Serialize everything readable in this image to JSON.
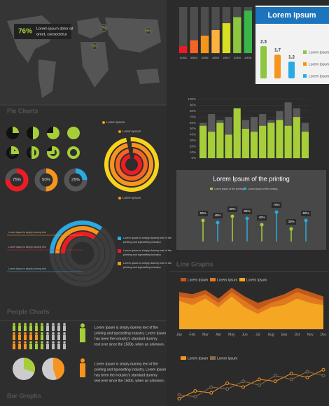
{
  "map": {
    "value_label": "76%",
    "caption": [
      "Lorem ipsum dolor sit",
      "amet, consectetur"
    ],
    "pins": [
      "2%",
      "6%",
      "6%"
    ]
  },
  "sections": {
    "pie": "Pie Charts",
    "line": "Line Graphs",
    "people": "People Charts",
    "bar": "Bar Graphs"
  },
  "radial_labels": [
    "Lorem Ipsum",
    "Lorem Ipsum",
    "Lorem Ipsum"
  ],
  "semi_labels": [
    "Lorem Ipsum is simply dummy text",
    "Lorem Ipsum is simply dummy text",
    "Lorem Ipsum is simply dummy text"
  ],
  "notes": [
    [
      "Lorem Ipsum is simply dummy text of the",
      "printing and typesetting industry."
    ],
    [
      "Lorem Ipsum is simply dummy text of the",
      "printing and typesetting industry."
    ],
    [
      "Lorem Ipsum is simply dummy text of the",
      "printing and typesetting industry."
    ]
  ],
  "people_text": [
    [
      "Lorem Ipsum is simply dummy text of the",
      "printing and typesetting industry. Lorem Ipsum",
      "has been the industry's standard dummy",
      "text ever since the 1500s, when an unknown."
    ],
    [
      "Lorem Ipsum is simply dummy text of the",
      "printing and typesetting industry. Lorem Ipsum",
      "has been the industry's standard dummy",
      "text ever since the 1500s, when an unknown."
    ]
  ],
  "chart_data": [
    {
      "type": "bar",
      "categories": [
        "2003",
        "2004",
        "2005",
        "2006",
        "2007",
        "2008",
        "2009"
      ],
      "values": [
        15,
        28,
        38,
        50,
        65,
        78,
        92
      ],
      "ylim": [
        0,
        100
      ],
      "colors": [
        "#ed1c24",
        "#f26522",
        "#f7941d",
        "#fbb040",
        "#d7df23",
        "#8dc63f",
        "#39b54a"
      ],
      "track_color": "#4d4d4d"
    },
    {
      "type": "bar",
      "title": "Lorem Ipsum",
      "values": [
        2.3,
        1.7,
        1.2
      ],
      "ylim": [
        0,
        3
      ],
      "colors": [
        "#8dc63f",
        "#f7941d",
        "#29abe2"
      ],
      "legend": [
        "Lorem Ipsum",
        "Lorem Ipsum",
        "Lorem Ipsum"
      ]
    },
    {
      "type": "bar",
      "values": [
        55,
        45,
        60,
        40,
        85,
        50,
        45,
        55,
        60,
        65,
        55,
        70,
        45
      ],
      "back_values": [
        60,
        75,
        65,
        70,
        75,
        65,
        70,
        75,
        65,
        80,
        95,
        85,
        60
      ],
      "color": "#a6ce39",
      "back_color": "#5a5a5a",
      "ylim": [
        0,
        100
      ],
      "grid": true,
      "yticks": [
        {
          "value": 0,
          "label": "0%"
        },
        {
          "value": 10,
          "label": "10%"
        },
        {
          "value": 20,
          "label": "20%"
        },
        {
          "value": 30,
          "label": "30%"
        },
        {
          "value": 40,
          "label": "40%"
        },
        {
          "value": 50,
          "label": "50%"
        },
        {
          "value": 60,
          "label": "60%"
        },
        {
          "value": 70,
          "label": "70%"
        },
        {
          "value": 80,
          "label": "80%"
        },
        {
          "value": 90,
          "label": "90%"
        },
        {
          "value": 100,
          "label": "100%"
        }
      ]
    },
    {
      "type": "lollipop",
      "title": "Lorem Ipsum of the printing",
      "ylim": [
        0,
        100
      ],
      "series": [
        {
          "name": "Lorem ipsum of the printing",
          "color": "#a6ce39",
          "values": [
            50,
            60,
            40,
            30
          ],
          "value_labels": [
            "50%",
            "60%",
            "40%",
            "30%"
          ]
        },
        {
          "name": "Lorem ipsum of the printing",
          "color": "#29abe2",
          "values": [
            45,
            55,
            70,
            50
          ],
          "value_labels": [
            "45%",
            "55%",
            "70%",
            "50%"
          ]
        }
      ]
    },
    {
      "type": "area",
      "categories": [
        "Jan",
        "Feb",
        "Mar",
        "Apr",
        "May",
        "Jun",
        "Jul",
        "Aug",
        "Sep",
        "Oct",
        "Nov",
        "Dec"
      ],
      "ylim": [
        0,
        100
      ],
      "series": [
        {
          "name": "Lorem Ipsum",
          "color": "#c1591c",
          "values": [
            85,
            80,
            90,
            70,
            95,
            75,
            60,
            70,
            80,
            95,
            85,
            75
          ]
        },
        {
          "name": "Lorem Ipsum",
          "color": "#e0781f",
          "values": [
            75,
            70,
            80,
            60,
            85,
            65,
            45,
            60,
            70,
            85,
            75,
            65
          ]
        },
        {
          "name": "Lorem Ipsum",
          "color": "#f5a623",
          "values": [
            65,
            55,
            70,
            50,
            75,
            50,
            35,
            50,
            55,
            70,
            60,
            55
          ]
        }
      ]
    },
    {
      "type": "line",
      "x": [
        1,
        2,
        3,
        4,
        5,
        6,
        7,
        8,
        9,
        10
      ],
      "xlim": [
        1,
        10
      ],
      "ylim": [
        0,
        100
      ],
      "series": [
        {
          "name": "Lorem Ipsum",
          "color": "#f7941d",
          "values": [
            10,
            30,
            25,
            50,
            40,
            60,
            55,
            75,
            65,
            85
          ]
        },
        {
          "name": "Lorem Ipsum",
          "color": "#8a6a4a",
          "values": [
            20,
            15,
            40,
            35,
            55,
            45,
            70,
            60,
            80,
            70
          ]
        }
      ]
    },
    {
      "type": "pie",
      "values": [
        25,
        50,
        75,
        100
      ],
      "color": "#a6ce39"
    },
    {
      "type": "donut",
      "values": [
        75,
        50,
        25
      ],
      "value_labels": [
        "75%",
        "50%",
        "25%"
      ],
      "colors": [
        "#ed1c24",
        "#f7941d",
        "#29abe2"
      ]
    },
    {
      "type": "pie",
      "values": [
        30,
        45
      ],
      "colors": [
        "#a6ce39",
        "#f7941d"
      ]
    }
  ]
}
